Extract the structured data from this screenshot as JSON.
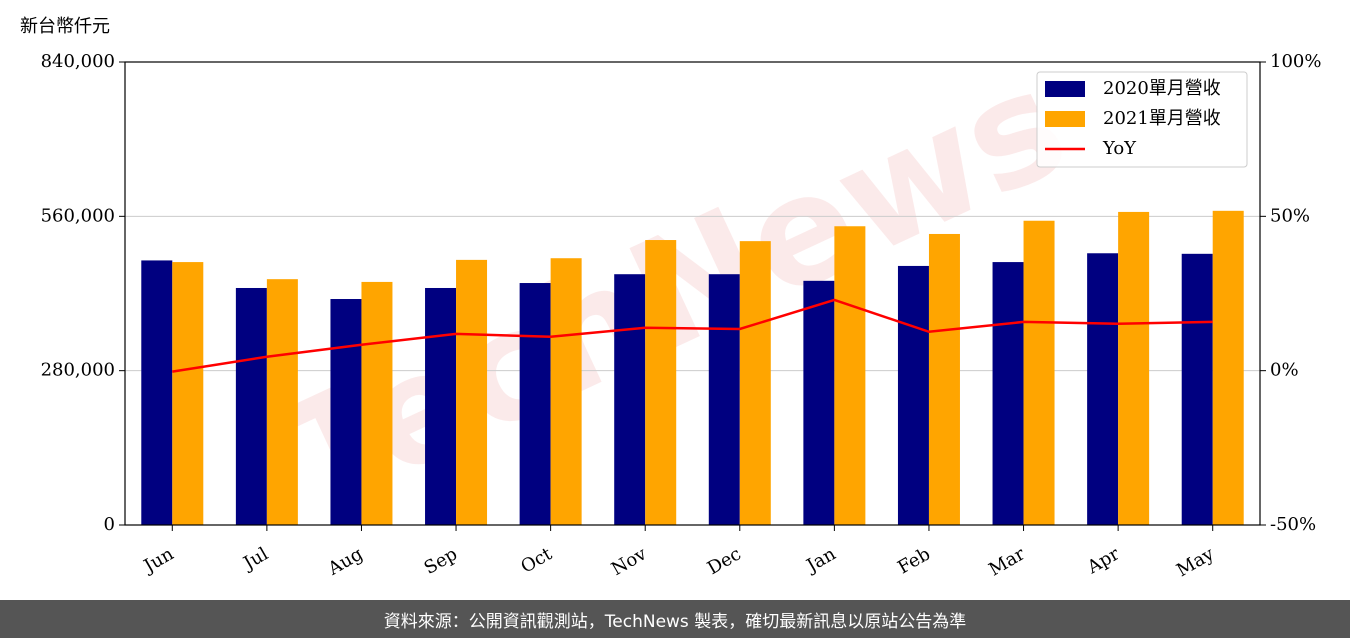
{
  "chart_data": {
    "type": "bar-line",
    "y_label": "新台幣仟元",
    "watermark": "TechNews",
    "categories": [
      "Jun",
      "Jul",
      "Aug",
      "Sep",
      "Oct",
      "Nov",
      "Dec",
      "Jan",
      "Feb",
      "Mar",
      "Apr",
      "May"
    ],
    "series": [
      {
        "name": "2020單月營收",
        "color": "#000080",
        "type": "bar",
        "values": [
          480000,
          430000,
          410000,
          430000,
          439000,
          455000,
          455000,
          443000,
          470000,
          477000,
          493000,
          492000
        ]
      },
      {
        "name": "2021單月營收",
        "color": "#ffa500",
        "type": "bar",
        "values": [
          477000,
          446000,
          441000,
          481000,
          484000,
          517000,
          515000,
          542000,
          528000,
          552000,
          568000,
          570000
        ]
      },
      {
        "name": "YoY",
        "color": "#ff0000",
        "type": "line",
        "axis": "y2",
        "values": [
          -0.3,
          4.5,
          8.4,
          11.9,
          11.0,
          13.9,
          13.5,
          22.9,
          12.6,
          15.8,
          15.2,
          15.8
        ]
      }
    ],
    "ylim": [
      0,
      840000
    ],
    "yticks": [
      0,
      {
        "value": 280000,
        "label": "280,000"
      },
      {
        "value": 560000,
        "label": "560,000"
      },
      {
        "value": 840000,
        "label": "840,000"
      }
    ],
    "y2lim": [
      -50,
      100
    ],
    "y2ticks": [
      {
        "value": -50,
        "label": "-50%"
      },
      {
        "value": 0,
        "label": "0%"
      },
      {
        "value": 50,
        "label": "50%"
      },
      {
        "value": 100,
        "label": "100%"
      }
    ],
    "grid": true,
    "legend": "upper right",
    "footer": "資料來源：公開資訊觀測站，TechNews 製表，確切最新訊息以原站公告為準"
  }
}
